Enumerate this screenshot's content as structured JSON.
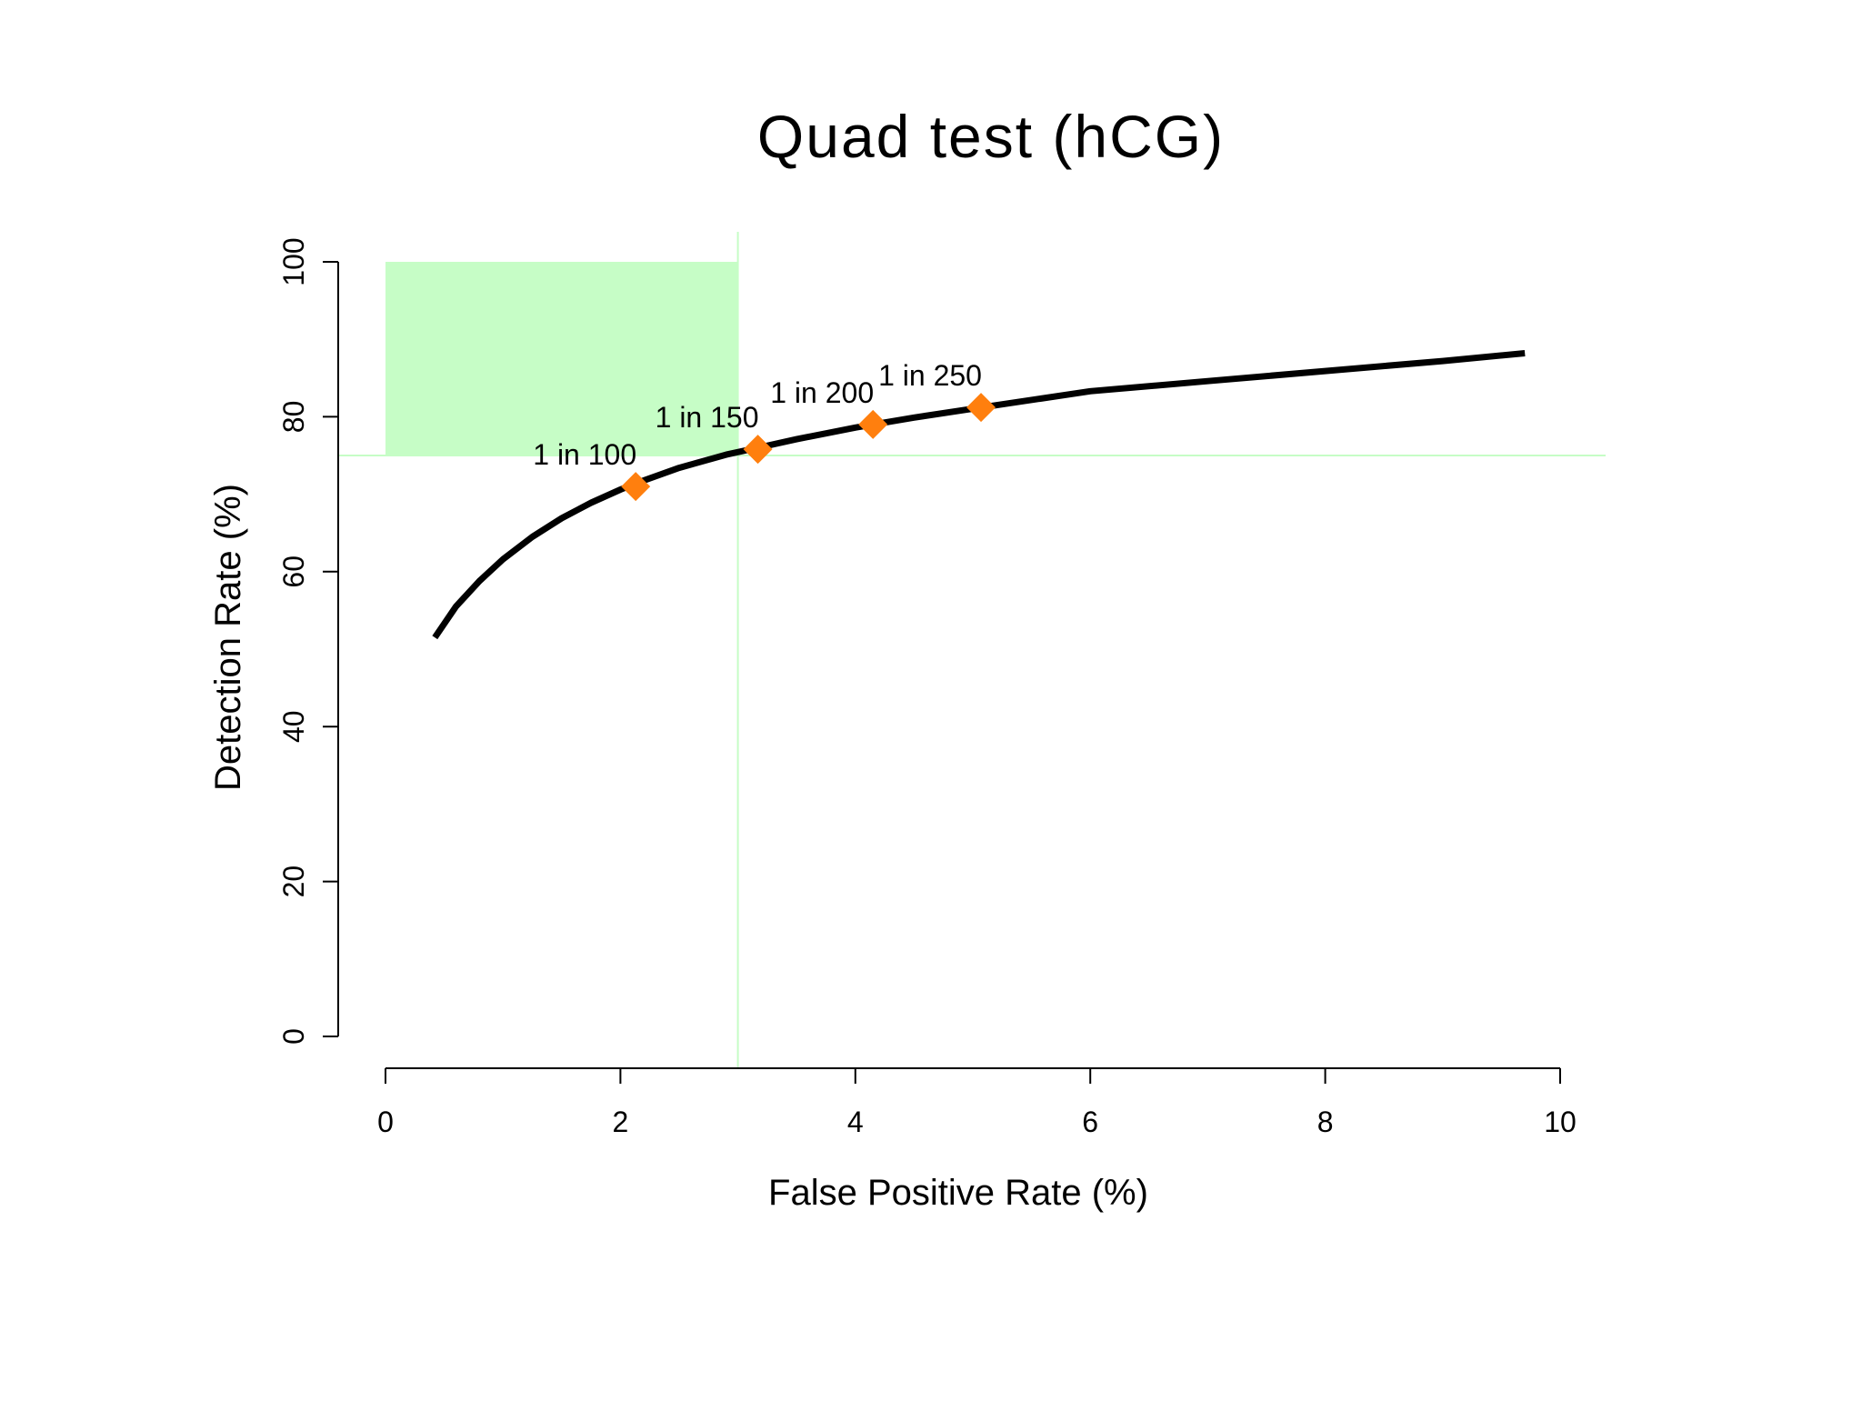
{
  "chart_data": {
    "type": "line",
    "title": "Quad test (hCG)",
    "xlabel": "False Positive Rate (%)",
    "ylabel": "Detection Rate (%)",
    "xlim": [
      0,
      10
    ],
    "ylim": [
      0,
      100
    ],
    "xticks": [
      "0",
      "2",
      "4",
      "6",
      "8",
      "10"
    ],
    "yticks": [
      "0",
      "20",
      "40",
      "60",
      "80",
      "100"
    ],
    "grid": false,
    "curve": {
      "color": "#000000",
      "x": [
        0.42,
        0.6,
        0.8,
        1.0,
        1.25,
        1.5,
        1.75,
        2.0,
        2.13,
        2.5,
        2.9,
        3.17,
        3.5,
        4.0,
        4.15,
        4.5,
        5.07,
        6.0,
        7.0,
        8.0,
        9.0,
        9.7
      ],
      "y": [
        51.5,
        55.5,
        58.8,
        61.6,
        64.5,
        66.9,
        68.9,
        70.6,
        71.4,
        73.4,
        75.1,
        76.0,
        77.1,
        78.6,
        79.0,
        79.9,
        81.2,
        83.3,
        84.6,
        85.9,
        87.2,
        88.2
      ]
    },
    "points": [
      {
        "label": "1 in 100",
        "x": 2.13,
        "y": 71.0
      },
      {
        "label": "1 in 150",
        "x": 3.17,
        "y": 75.8
      },
      {
        "label": "1 in 200",
        "x": 4.15,
        "y": 79.0
      },
      {
        "label": "1 in 250",
        "x": 5.07,
        "y": 81.2
      }
    ],
    "target_region": {
      "x": [
        0,
        3
      ],
      "y": [
        75,
        100
      ],
      "color": "#c6fdc6"
    },
    "reference_lines": {
      "x": 3,
      "y": 75,
      "color": "#c6fdc6"
    },
    "marker_color": "#ff7f0e"
  }
}
